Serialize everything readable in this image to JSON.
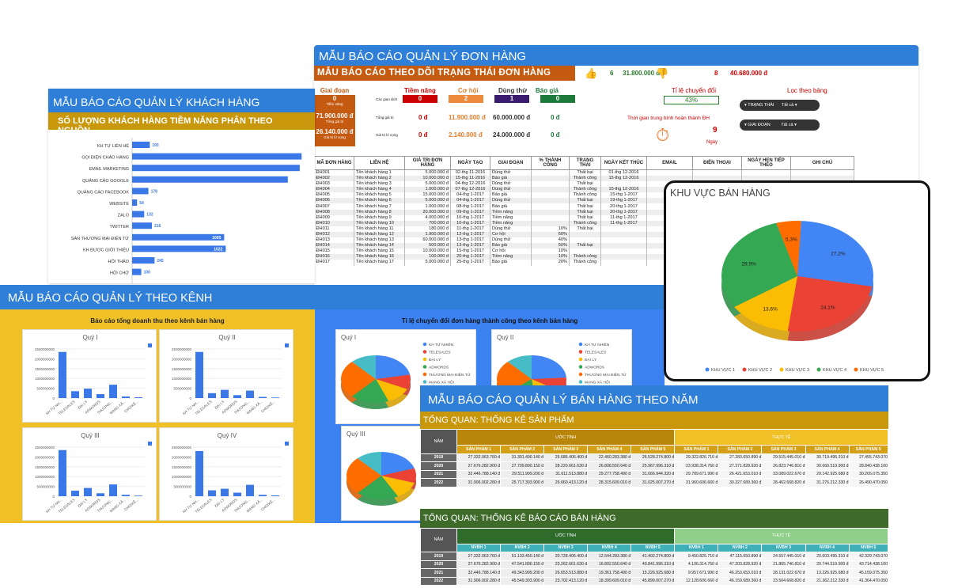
{
  "order_panel": {
    "title": "MẪU BÁO CÁO QUẢN LÝ ĐƠN HÀNG",
    "subtitle": "MẪU BÁO CÁO THEO DÕI TRẠNG THÁI ĐƠN HÀNG",
    "like_count": "6",
    "like_amount": "31.800.000 đ",
    "dislike_count": "8",
    "dislike_amount": "40.680.000 đ",
    "stage_box": {
      "label": "Giai đoạn",
      "count": "0",
      "count_label": "Tiềm năng",
      "total": "71.900.000 đ",
      "total_label": "Tổng giá trị",
      "expected": "26.140.000 đ",
      "expected_label": "Giá trị kì vọng"
    },
    "stage_headers": [
      "Tiềm năng",
      "Cơ hội",
      "Dùng thử",
      "Báo giá"
    ],
    "row_labels": [
      "Các giao dịch",
      "Tổng giá trị",
      "Giá trị kì vọng"
    ],
    "deals": [
      "0",
      "2",
      "1",
      "0"
    ],
    "totals": [
      "0 đ",
      "11.900.000 đ",
      "60.000.000 đ",
      "0 đ"
    ],
    "expected": [
      "0 đ",
      "2.140.000 đ",
      "24.000.000 đ",
      "0 đ"
    ],
    "conversion_label": "Tỉ lệ chuyển đổi",
    "conversion_value": "43%",
    "avg_time_label": "Thời gian trung bình hoàn thành ĐH",
    "avg_time_value": "9",
    "avg_time_unit": "Ngày",
    "filter_title": "Lọc theo bảng",
    "filter_status": "TRẠNG THÁI",
    "filter_stage": "GIAI ĐOẠN",
    "filter_all": "Tất cả",
    "table_headers": [
      "MÃ ĐƠN HÀNG",
      "LIÊN HỆ",
      "GIÁ TRỊ ĐƠN HÀNG",
      "NGÀY TẠO",
      "GIAI ĐOẠN",
      "% THÀNH CÔNG",
      "TRẠNG THÁI",
      "NGÀY KẾT THÚC",
      "EMAIL",
      "ĐIỆN THOẠI",
      "NGÀY HẸN TIẾP THEO",
      "GHI CHÚ"
    ],
    "rows": [
      [
        "ĐH001",
        "Tên khách hàng 1",
        "5.000.000 đ",
        "02-thg 11-2016",
        "Dùng thử",
        "",
        "Thất bại",
        "01-thg 12-2016"
      ],
      [
        "ĐH002",
        "Tên khách hàng 2",
        "10.000.000 đ",
        "15-thg 11-2016",
        "Báo giá",
        "",
        "Thành công",
        "15-thg 12-2016"
      ],
      [
        "ĐH003",
        "Tên khách hàng 3",
        "5.000.000 đ",
        "04-thg 12-2016",
        "Dùng thử",
        "",
        "Thất bại",
        ""
      ],
      [
        "ĐH004",
        "Tên khách hàng 4",
        "1.000.000 đ",
        "07-thg 12-2016",
        "Dùng thử",
        "",
        "Thành công",
        "15-thg 12-2016"
      ],
      [
        "ĐH005",
        "Tên khách hàng 5",
        "15.000.000 đ",
        "04-thg 1-2017",
        "Báo giá",
        "",
        "Thành công",
        "15-thg 1-2017"
      ],
      [
        "ĐH006",
        "Tên khách hàng 6",
        "5.000.000 đ",
        "04-thg 1-2017",
        "Dùng thử",
        "",
        "Thất bại",
        "19-thg 1-2017"
      ],
      [
        "ĐH007",
        "Tên khách hàng 7",
        "1.000.000 đ",
        "08-thg 1-2017",
        "Báo giá",
        "",
        "Thất bại",
        "20-thg 1-2017"
      ],
      [
        "ĐH008",
        "Tên khách hàng 8",
        "20.000.000 đ",
        "09-thg 1-2017",
        "Tiềm năng",
        "",
        "Thất bại",
        "20-thg 1-2017"
      ],
      [
        "ĐH009",
        "Tên khách hàng 9",
        "4.000.000 đ",
        "10-thg 1-2017",
        "Tiềm năng",
        "",
        "Thất bại",
        "11-thg 1-2017"
      ],
      [
        "ĐH010",
        "Tên khách hàng 10",
        "700.000 đ",
        "10-thg 1-2017",
        "Tiềm năng",
        "",
        "Thành công",
        "11-thg 1-2017"
      ],
      [
        "ĐH011",
        "Tên khách hàng 11",
        "180.000 đ",
        "11-thg 1-2017",
        "Dùng thử",
        "10%",
        "Thất bại",
        ""
      ],
      [
        "ĐH012",
        "Tên khách hàng 12",
        "1.900.000 đ",
        "12-thg 1-2017",
        "Cơ hội",
        "60%",
        "",
        ""
      ],
      [
        "ĐH013",
        "Tên khách hàng 13",
        "60.000.000 đ",
        "13-thg 1-2017",
        "Dùng thử",
        "40%",
        "",
        ""
      ],
      [
        "ĐH014",
        "Tên khách hàng 14",
        "500.000 đ",
        "13-thg 1-2017",
        "Báo giá",
        "50%",
        "Thất bại",
        ""
      ],
      [
        "ĐH015",
        "Tên khách hàng 15",
        "10.000.000 đ",
        "15-thg 1-2017",
        "Cơ hội",
        "10%",
        "",
        ""
      ],
      [
        "ĐH016",
        "Tên khách hàng 16",
        "100.000 đ",
        "20-thg 1-2017",
        "Tiềm năng",
        "10%",
        "Thành công",
        ""
      ],
      [
        "ĐH017",
        "Tên khách hàng 17",
        "5.000.000 đ",
        "25-thg 1-2017",
        "Báo giá",
        "20%",
        "Thành công",
        ""
      ]
    ]
  },
  "customer_panel": {
    "title": "MẪU BÁO CÁO QUẢN LÝ KHÁCH HÀNG",
    "subtitle": "SỐ LƯỢNG KHÁCH HÀNG TIỀM NĂNG PHÂN THEO NGUỒN"
  },
  "channel_panel": {
    "title": "MẪU BÁO CÁO QUẢN LÝ THEO KÊNH",
    "revenue_title": "Báo cáo tổng doanh thu theo kênh bán hàng",
    "conversion_title": "Tỉ lệ chuyển đổi đơn hàng thành công theo kênh bán hàng"
  },
  "region_panel": {
    "title": "KHU VỰC BÁN HÀNG"
  },
  "sales_panel": {
    "title": "MẪU BÁO CÁO QUẢN LÝ BÁN HÀNG THEO NĂM",
    "section1": "TỔNG QUAN: THỐNG KÊ SẢN PHẨM",
    "section2": "TỔNG QUAN: THỐNG KÊ BÁO CÁO BÁN HÀNG",
    "year_label": "NĂM",
    "estimate_label": "ƯỚC TÍNH",
    "actual_label": "THỰC TẾ",
    "years": [
      "2019",
      "2020",
      "2021",
      "2022"
    ],
    "product_headers": [
      "SẢN PHẨM 1",
      "SẢN PHẨM 2",
      "SẢN PHẨM 3",
      "SẢN PHẨM 4",
      "SẢN PHẨM 5"
    ],
    "staff_headers": [
      "NVBH 1",
      "NVBH 2",
      "NVBH 3",
      "NVBH 4",
      "NVBH 5"
    ],
    "product_rows": [
      [
        "27.332.063.760 đ",
        "31.301.490.140 đ",
        "25.686.406.400 đ",
        "22.460.283.380 đ",
        "26.528.274.800 đ",
        "29.322.826.710 đ",
        "27.283.650.890 đ",
        "29.515.445.010 đ",
        "30.719.495.310 đ",
        "27.455.743.070"
      ],
      [
        "27.676.282.900 đ",
        "27.709.890.150 đ",
        "28.220.661.630 đ",
        "26.808.550.640 đ",
        "25.967.996.310 đ",
        "23.938.314.760 đ",
        "27.371.828.920 đ",
        "26.823.746.810 đ",
        "30.660.519.900 đ",
        "28.840.438.100"
      ],
      [
        "32.446.788.140 đ",
        "29.511.999.200 đ",
        "31.611.513.880 đ",
        "29.277.758.490 đ",
        "31.666.944.320 đ",
        "29.789.671.990 đ",
        "26.421.653.010 đ",
        "33.089.022.670 đ",
        "29.142.925.680 đ",
        "30.265.075.350"
      ],
      [
        "31.906.002.280 đ",
        "25.717.303.900 đ",
        "26.660.413.120 đ",
        "28.315.609.010 đ",
        "31.025.007.270 đ",
        "31.960.606.660 đ",
        "30.327.689.360 đ",
        "28.462.668.820 đ",
        "31.276.212.330 đ",
        "26.490.470.050"
      ]
    ],
    "staff_rows": [
      [
        "27.332.063.760 đ",
        "51.133.450.140 đ",
        "20.728.406.400 đ",
        "12.544.283.380 đ",
        "41.402.274.800 đ",
        "9.450.825.710 đ",
        "47.115.650.890 đ",
        "24.557.445.010 đ",
        "20.603.495.310 đ",
        "42.329.743.070"
      ],
      [
        "27.676.282.900 đ",
        "47.541.890.150 đ",
        "23.262.661.630 đ",
        "16.892.550.640 đ",
        "40.841.996.310 đ",
        "4.106.314.760 đ",
        "47.203.828.920 đ",
        "21.865.746.810 đ",
        "20.744.519.900 đ",
        "43.714.438.100"
      ],
      [
        "32.446.788.140 đ",
        "49.343.999.200 đ",
        "26.653.513.880 đ",
        "19.361.758.490 đ",
        "15.226.925.680 đ",
        "9.957.671.990 đ",
        "46.253.653.010 đ",
        "28.131.022.670 đ",
        "13.226.925.680 đ",
        "45.159.075.350"
      ],
      [
        "31.906.002.280 đ",
        "45.549.303.900 đ",
        "23.702.413.120 đ",
        "18.399.609.010 đ",
        "45.899.007.270 đ",
        "12.128.606.660 đ",
        "46.159.689.360 đ",
        "23.504.668.820 đ",
        "21.362.212.330 đ",
        "41.364.470.050"
      ]
    ]
  },
  "chart_data": [
    {
      "type": "bar",
      "orientation": "horizontal",
      "categories": [
        "KH TỰ LIÊN HỆ",
        "GỌI ĐIỆN CHÀO HÀNG",
        "EMAIL MARKETING",
        "QUẢNG CÁO GOOGLE",
        "QUẢNG CÁO FACEBOOK",
        "WEBSITE",
        "ZALO",
        "TWITTER",
        "SÀN THƯƠNG MẠI ĐIỆN TỬ",
        "KH ĐƯỢC GIỚI THIỆU",
        "HỘI THẢO",
        "HỘI CHỢ"
      ],
      "values": [
        193,
        1850,
        1830,
        1700,
        178,
        54,
        132,
        216,
        1005,
        1022,
        245,
        100
      ],
      "labels": [
        "193",
        "",
        "",
        "",
        "178",
        "54",
        "132",
        "216",
        "1005",
        "1022",
        "245",
        "100"
      ],
      "colors": {
        "bar": "#3b78e7"
      }
    },
    {
      "type": "bar",
      "title": "Quý I",
      "categories": [
        "KH TỰ NH...",
        "TELESALES",
        "ĐẠI LÝ",
        "ADWORDS",
        "THƯƠNG...",
        "MẠNG XÃ...",
        "CHỢ/KÊ..."
      ],
      "values": [
        2350000000,
        350000000,
        480000000,
        200000000,
        680000000,
        80000000,
        40000000
      ],
      "ticks": [
        "0",
        "500000000",
        "1000000000",
        "1500000000",
        "2000000000",
        "2500000000"
      ],
      "ylim": [
        0,
        2500000000
      ]
    },
    {
      "type": "bar",
      "title": "Quý II",
      "categories": [
        "KH TỰ NH...",
        "TELESALES",
        "ĐẠI LÝ",
        "ADWORDS",
        "THƯƠNG...",
        "MẠNG XÃ...",
        "CHỢ/KÊ..."
      ],
      "values": [
        2350000000,
        250000000,
        420000000,
        150000000,
        380000000,
        60000000,
        30000000
      ],
      "ticks": [
        "0",
        "500000000",
        "1000000000",
        "1500000000",
        "2000000000",
        "2500000000"
      ],
      "ylim": [
        0,
        2500000000
      ]
    },
    {
      "type": "bar",
      "title": "Quý III",
      "categories": [
        "KH TỰ NH...",
        "TELESALES",
        "ĐẠI LÝ",
        "ADWORDS",
        "THƯƠNG...",
        "MẠNG XÃ...",
        "CHỢ/KÊ..."
      ],
      "values": [
        2350000000,
        280000000,
        420000000,
        150000000,
        600000000,
        70000000,
        30000000
      ],
      "ticks": [
        "0",
        "500000000",
        "1000000000",
        "1500000000",
        "2000000000",
        "2500000000"
      ],
      "ylim": [
        0,
        2500000000
      ]
    },
    {
      "type": "bar",
      "title": "Quý IV",
      "categories": [
        "KH TỰ NH...",
        "TELESALES",
        "ĐẠI LÝ",
        "ADWORDS",
        "THƯƠNG...",
        "MẠNG XÃ...",
        "CHỢ/KÊ..."
      ],
      "values": [
        2300000000,
        300000000,
        380000000,
        180000000,
        580000000,
        70000000,
        40000000
      ],
      "ticks": [
        "0",
        "500000000",
        "1000000000",
        "1500000000",
        "2000000000",
        "2500000000"
      ],
      "ylim": [
        0,
        2500000000
      ]
    },
    {
      "type": "pie",
      "title": "Quý I",
      "categories": [
        "KH TỰ NHIÊN",
        "TELESALES",
        "ĐẠI LÝ",
        "ADWORDS",
        "THƯƠNG MẠI ĐIỆN TỬ",
        "MẠNG XÃ HỘI"
      ],
      "values": [
        22,
        10,
        12,
        18,
        26,
        12
      ],
      "colors": [
        "#4285f4",
        "#ea4335",
        "#fbbc04",
        "#34a853",
        "#ff6d01",
        "#46bdc6"
      ]
    },
    {
      "type": "pie",
      "title": "Quý II",
      "categories": [
        "KH TỰ NHIÊN",
        "TELESALES",
        "ĐẠI LÝ",
        "ADWORDS",
        "THƯƠNG MẠI ĐIỆN TỬ",
        "MẠNG XÃ HỘI"
      ],
      "values": [
        24,
        10,
        14,
        16,
        24,
        12
      ],
      "colors": [
        "#4285f4",
        "#ea4335",
        "#fbbc04",
        "#34a853",
        "#ff6d01",
        "#46bdc6"
      ]
    },
    {
      "type": "pie",
      "title": "Quý III",
      "categories": [
        "KH TỰ NHIÊN",
        "TELESALES",
        "ĐẠI LÝ",
        "ADWORDS",
        "THƯƠNG MẠI ĐIỆN TỬ",
        "MẠNG XÃ HỘI"
      ],
      "values": [
        20,
        10,
        12,
        20,
        26,
        12
      ],
      "colors": [
        "#4285f4",
        "#ea4335",
        "#fbbc04",
        "#34a853",
        "#ff6d01",
        "#46bdc6"
      ]
    },
    {
      "type": "pie",
      "title": "KHU VỰC BÁN HÀNG",
      "categories": [
        "KHU VỰC 1",
        "KHU VỰC 2",
        "KHU VỰC 3",
        "KHU VỰC 4",
        "KHU VỰC 5"
      ],
      "values": [
        27.2,
        24.1,
        13.6,
        29.9,
        5.3
      ],
      "labels": [
        "27,2%",
        "24,1%",
        "13,6%",
        "29,9%",
        "5,3%"
      ],
      "colors": [
        "#4285f4",
        "#ea4335",
        "#fbbc04",
        "#34a853",
        "#ff6d01"
      ]
    }
  ]
}
